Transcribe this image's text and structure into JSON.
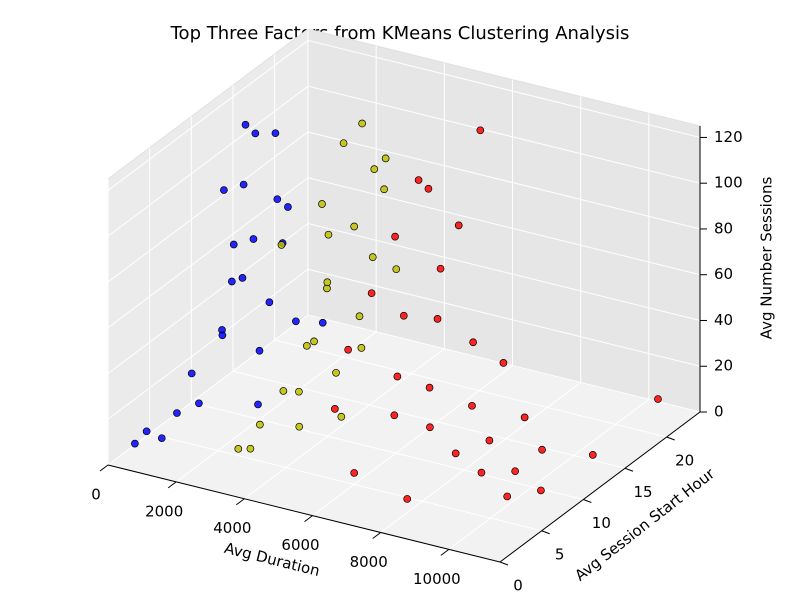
{
  "chart_data": {
    "type": "scatter3d",
    "title": "Top Three Factors from KMeans Clustering Analysis",
    "x_label": "Avg Duration",
    "y_label": "Avg Session Start Hour",
    "z_label": "Avg Number Sessions",
    "xlim": [
      0,
      11500
    ],
    "ylim": [
      0,
      24
    ],
    "zlim": [
      0,
      125
    ],
    "xticks": [
      0,
      2000,
      4000,
      6000,
      8000,
      10000
    ],
    "yticks": [
      0,
      5,
      10,
      15,
      20
    ],
    "zticks": [
      0,
      20,
      40,
      60,
      80,
      100,
      120
    ],
    "grid": true,
    "series": [
      {
        "color": "#0000ff",
        "x": [
          300,
          400,
          600,
          800,
          500,
          900,
          700,
          1000,
          800,
          900,
          1100,
          1200,
          1300,
          1500,
          1400,
          1600,
          1200,
          1800,
          1700,
          2000,
          1900,
          2100,
          1000,
          2200,
          600
        ],
        "y": [
          2,
          3,
          4,
          5,
          8,
          10,
          12,
          11,
          13,
          14,
          12,
          9,
          15,
          10,
          8,
          16,
          6,
          12,
          14,
          10,
          18,
          13,
          16,
          9,
          15
        ],
        "z": [
          5,
          8,
          3,
          12,
          20,
          35,
          50,
          70,
          90,
          110,
          120,
          100,
          80,
          60,
          40,
          25,
          15,
          45,
          65,
          30,
          20,
          85,
          105,
          10,
          60
        ]
      },
      {
        "color": "#bfbf00",
        "x": [
          2500,
          2700,
          2900,
          3000,
          2800,
          3100,
          3000,
          3300,
          3500,
          3600,
          3400,
          3800,
          3900,
          4000,
          4200,
          4100,
          3700,
          2600,
          3200,
          4400,
          4300,
          3500,
          4500,
          2400,
          3900
        ],
        "y": [
          8,
          10,
          12,
          14,
          15,
          13,
          16,
          17,
          12,
          10,
          9,
          14,
          16,
          11,
          13,
          15,
          18,
          5,
          4,
          10,
          17,
          19,
          12,
          11,
          7
        ],
        "z": [
          5,
          15,
          30,
          50,
          70,
          90,
          108,
          115,
          60,
          40,
          20,
          80,
          100,
          25,
          45,
          65,
          85,
          3,
          8,
          10,
          55,
          95,
          35,
          75,
          12
        ]
      },
      {
        "color": "#ff0000",
        "x": [
          4600,
          4800,
          5000,
          5200,
          5000,
          5500,
          5800,
          6000,
          6200,
          6500,
          7000,
          7500,
          8000,
          8500,
          9000,
          9500,
          10000,
          10500,
          6800,
          7200,
          5400,
          8800,
          6000,
          7800,
          9800,
          5600,
          4700,
          10800,
          11000,
          5300
        ],
        "y": [
          10,
          12,
          14,
          16,
          18,
          13,
          11,
          15,
          9,
          12,
          10,
          13,
          9,
          11,
          8,
          10,
          7,
          9,
          16,
          18,
          20,
          14,
          5,
          4,
          12,
          17,
          8,
          14,
          21,
          23
        ],
        "z": [
          40,
          60,
          80,
          100,
          90,
          50,
          30,
          45,
          20,
          25,
          15,
          18,
          10,
          12,
          8,
          5,
          4,
          3,
          35,
          22,
          70,
          15,
          5,
          3,
          10,
          60,
          20,
          6,
          12,
          103
        ]
      }
    ]
  }
}
